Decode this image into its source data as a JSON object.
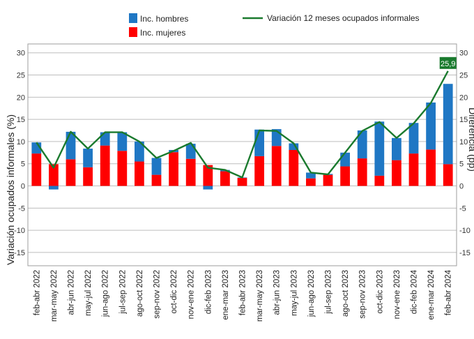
{
  "chart_data": {
    "type": "bar+line",
    "stacked": true,
    "categories": [
      "feb-abr 2022",
      "mar-may 2022",
      "abr-jun 2022",
      "may-jul 2022",
      "jun-ago 2022",
      "jul-sep 2022",
      "ago-oct 2022",
      "sep-nov 2022",
      "oct-dic 2022",
      "nov-ene 2022",
      "dic-feb 2023",
      "ene-mar 2023",
      "feb-abr 2023",
      "mar-may 2023",
      "abr-jun 2023",
      "may-jul 2023",
      "jun-ago 2023",
      "jul-sep 2023",
      "ago-oct 2023",
      "sep-nov 2023",
      "oct-dic 2023",
      "nov-ene 2023",
      "dic-feb 2024",
      "ene-mar 2024",
      "feb-abr 2024"
    ],
    "series": [
      {
        "name": "Inc. hombres",
        "kind": "bar",
        "color": "#1f77c4",
        "values": [
          2.5,
          -0.8,
          6.2,
          4.2,
          3.0,
          4.2,
          4.5,
          3.8,
          0.5,
          3.4,
          -0.8,
          0.3,
          0.1,
          6.0,
          3.8,
          1.5,
          1.3,
          0.2,
          3.1,
          6.3,
          12.2,
          5.0,
          6.9,
          10.6,
          18.1
        ]
      },
      {
        "name": "Inc. mujeres",
        "kind": "bar",
        "color": "#ff0000",
        "values": [
          7.3,
          4.9,
          6.0,
          4.2,
          9.1,
          7.9,
          5.5,
          2.5,
          7.6,
          6.1,
          4.7,
          3.3,
          1.8,
          6.7,
          9.0,
          8.1,
          1.7,
          2.5,
          4.4,
          6.2,
          2.3,
          5.8,
          7.3,
          8.2,
          4.9
        ]
      },
      {
        "name": "Variación 12 meses ocupados informales",
        "kind": "line",
        "color": "#1a7a2e",
        "values": [
          9.8,
          4.1,
          12.2,
          8.4,
          12.1,
          12.1,
          10.0,
          6.3,
          7.9,
          9.7,
          4.1,
          3.6,
          1.9,
          12.5,
          12.4,
          9.6,
          3.0,
          2.6,
          7.5,
          12.4,
          14.4,
          10.8,
          14.1,
          18.7,
          25.9
        ]
      }
    ],
    "ylabel": "Variación ocupados informales (%)",
    "y2label": "Diferencia (pp)",
    "ylim": [
      -18,
      32
    ],
    "yticks": [
      -15,
      -10,
      -5,
      0,
      5,
      10,
      15,
      20,
      25,
      30
    ],
    "annotation": "25,9",
    "grid": true,
    "legend": "top"
  }
}
